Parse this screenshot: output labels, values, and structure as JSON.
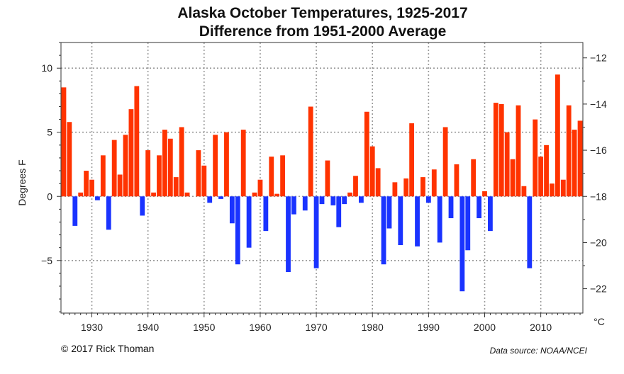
{
  "chart_data": {
    "type": "bar",
    "title_line1": "Alaska October Temperatures, 1925-2017",
    "title_line2": "Difference from 1951-2000 Average",
    "ylabel": "Degrees F",
    "y2label": "°C",
    "ylim": [
      -9.1,
      12
    ],
    "yticks": [
      -5,
      0,
      5,
      10
    ],
    "y2ticks": [
      -22,
      -20,
      -18,
      -16,
      -14,
      -12
    ],
    "baseline_c": -18,
    "xlim": [
      1924.5,
      2017.5
    ],
    "xticks": [
      1930,
      1940,
      1950,
      1960,
      1970,
      1980,
      1990,
      2000,
      2010
    ],
    "grid": true,
    "colors": {
      "positive": "#ff3300",
      "negative": "#1a33ff"
    },
    "x": [
      1925,
      1926,
      1927,
      1928,
      1929,
      1930,
      1931,
      1932,
      1933,
      1934,
      1935,
      1936,
      1937,
      1938,
      1939,
      1940,
      1941,
      1942,
      1943,
      1944,
      1945,
      1946,
      1947,
      1948,
      1949,
      1950,
      1951,
      1952,
      1953,
      1954,
      1955,
      1956,
      1957,
      1958,
      1959,
      1960,
      1961,
      1962,
      1963,
      1964,
      1965,
      1966,
      1967,
      1968,
      1969,
      1970,
      1971,
      1972,
      1973,
      1974,
      1975,
      1976,
      1977,
      1978,
      1979,
      1980,
      1981,
      1982,
      1983,
      1984,
      1985,
      1986,
      1987,
      1988,
      1989,
      1990,
      1991,
      1992,
      1993,
      1994,
      1995,
      1996,
      1997,
      1998,
      1999,
      2000,
      2001,
      2002,
      2003,
      2004,
      2005,
      2006,
      2007,
      2008,
      2009,
      2010,
      2011,
      2012,
      2013,
      2014,
      2015,
      2016,
      2017
    ],
    "values": [
      8.5,
      5.8,
      -2.3,
      0.3,
      2.0,
      1.3,
      -0.3,
      3.2,
      -2.6,
      4.4,
      1.7,
      4.8,
      6.8,
      8.6,
      -1.5,
      3.6,
      0.3,
      3.2,
      5.2,
      4.5,
      1.5,
      5.4,
      0.3,
      0.0,
      3.6,
      2.4,
      -0.5,
      4.8,
      -0.2,
      5.0,
      -2.1,
      -5.3,
      5.2,
      -4.0,
      0.3,
      1.3,
      -2.7,
      3.1,
      0.2,
      3.2,
      -5.9,
      -1.4,
      0.0,
      -1.1,
      7.0,
      -5.6,
      -0.6,
      2.8,
      -0.7,
      -2.4,
      -0.6,
      0.3,
      1.6,
      -0.5,
      6.6,
      3.9,
      2.2,
      -5.3,
      -2.5,
      1.1,
      -3.8,
      1.4,
      5.7,
      -3.9,
      1.5,
      -0.5,
      2.1,
      -3.6,
      5.4,
      -1.7,
      2.5,
      -7.4,
      -4.2,
      2.9,
      -1.7,
      0.4,
      -2.7,
      7.3,
      7.2,
      5.0,
      2.9,
      7.1,
      0.8,
      -5.6,
      6.0,
      3.1,
      4.0,
      1.0,
      9.5,
      1.3,
      7.1,
      5.2,
      5.9
    ]
  },
  "footer": {
    "credit": "© 2017 Rick Thoman",
    "source": "Data source: NOAA/NCEI"
  }
}
